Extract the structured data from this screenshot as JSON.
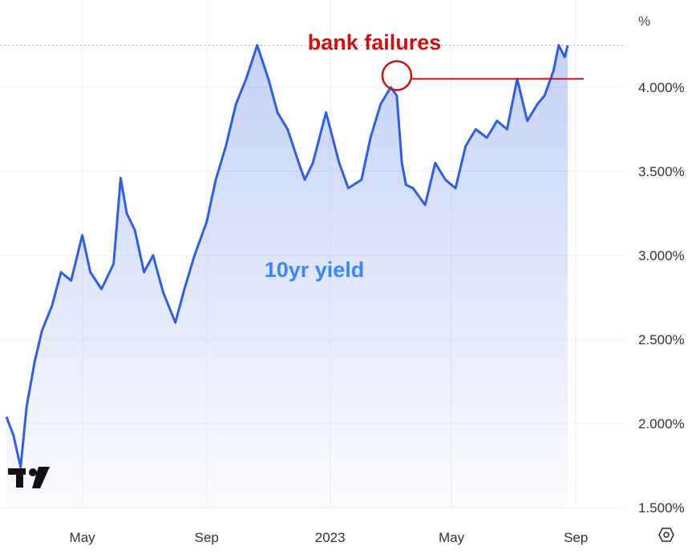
{
  "chart_data": {
    "type": "area",
    "unit": "%",
    "y_ticks": [
      "4.000%",
      "3.500%",
      "3.000%",
      "2.500%",
      "2.000%",
      "1.500%"
    ],
    "y_tick_values": [
      4.0,
      3.5,
      3.0,
      2.5,
      2.0,
      1.5
    ],
    "x_ticks": [
      "May",
      "Sep",
      "2023",
      "May",
      "Sep"
    ],
    "x_tick_values": [
      "2022-05-01",
      "2022-09-01",
      "2023-01-01",
      "2023-05-01",
      "2023-09-01"
    ],
    "xlim": [
      "2022-02-15",
      "2023-10-20"
    ],
    "ylim": [
      1.5,
      4.3
    ],
    "grid": true,
    "series": [
      {
        "color": "#2f5fe0",
        "x": [
          "2022-02-15",
          "2022-02-22",
          "2022-03-01",
          "2022-03-07",
          "2022-03-15",
          "2022-03-22",
          "2022-04-01",
          "2022-04-10",
          "2022-04-20",
          "2022-05-01",
          "2022-05-09",
          "2022-05-20",
          "2022-06-01",
          "2022-06-08",
          "2022-06-14",
          "2022-06-22",
          "2022-07-01",
          "2022-07-10",
          "2022-07-20",
          "2022-08-01",
          "2022-08-10",
          "2022-08-20",
          "2022-09-01",
          "2022-09-10",
          "2022-09-20",
          "2022-09-30",
          "2022-10-10",
          "2022-10-21",
          "2022-11-01",
          "2022-11-10",
          "2022-11-20",
          "2022-12-01",
          "2022-12-07",
          "2022-12-15",
          "2022-12-28",
          "2023-01-10",
          "2023-01-19",
          "2023-02-01",
          "2023-02-10",
          "2023-02-20",
          "2023-03-02",
          "2023-03-08",
          "2023-03-13",
          "2023-03-17",
          "2023-03-24",
          "2023-04-05",
          "2023-04-15",
          "2023-04-25",
          "2023-05-05",
          "2023-05-15",
          "2023-05-25",
          "2023-06-05",
          "2023-06-15",
          "2023-06-25",
          "2023-07-05",
          "2023-07-15",
          "2023-07-25",
          "2023-08-01",
          "2023-08-10",
          "2023-08-15",
          "2023-08-21",
          "2023-08-24"
        ],
        "values": [
          2.04,
          1.93,
          1.74,
          2.1,
          2.37,
          2.55,
          2.7,
          2.9,
          2.85,
          3.12,
          2.9,
          2.8,
          2.95,
          3.46,
          3.25,
          3.15,
          2.9,
          3.0,
          2.78,
          2.6,
          2.8,
          3.0,
          3.2,
          3.45,
          3.65,
          3.9,
          4.05,
          4.25,
          4.05,
          3.85,
          3.75,
          3.55,
          3.45,
          3.55,
          3.85,
          3.55,
          3.4,
          3.45,
          3.7,
          3.9,
          4.0,
          3.95,
          3.55,
          3.42,
          3.4,
          3.3,
          3.55,
          3.45,
          3.4,
          3.65,
          3.75,
          3.7,
          3.8,
          3.75,
          4.05,
          3.8,
          3.9,
          3.95,
          4.1,
          4.25,
          4.18,
          4.25
        ]
      }
    ],
    "annotations": [
      {
        "text": "bank failures",
        "color": "#cc1111",
        "x": "2023-03-08",
        "reference_y": 4.05
      },
      {
        "text": "10yr yield",
        "color": "#3a86ff"
      }
    ]
  },
  "toolbar": {
    "logo_text": "TV",
    "settings_icon": "gear-icon"
  }
}
